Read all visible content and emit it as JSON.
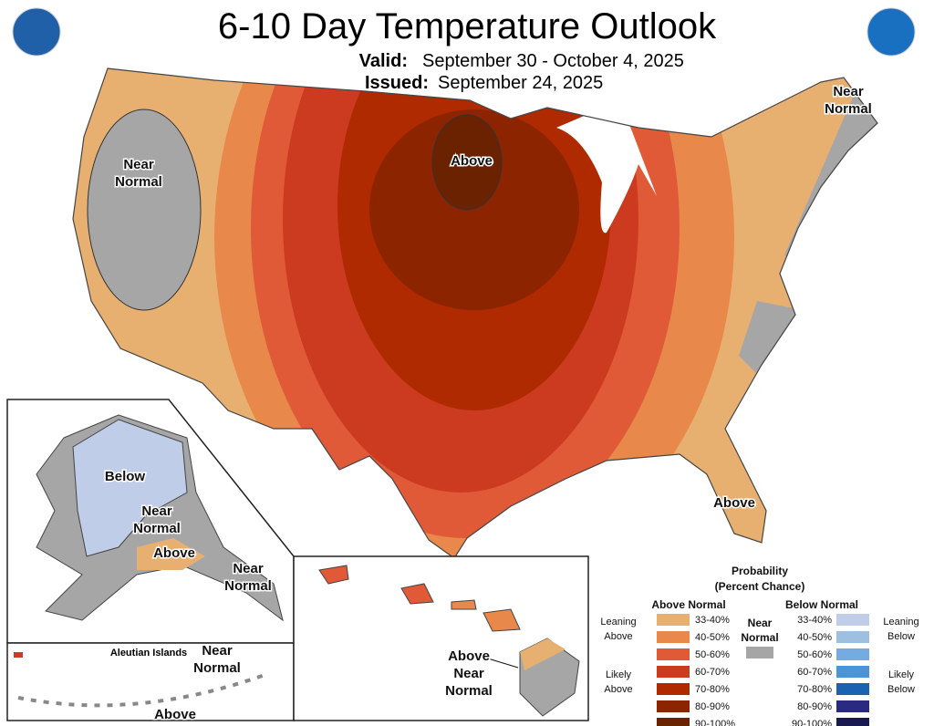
{
  "header": {
    "title": "6-10 Day Temperature Outlook",
    "valid_label": "Valid:",
    "valid": "September 30 - October 4, 2025",
    "issued_label": "Issued:",
    "issued": "September 24, 2025"
  },
  "map_labels": [
    {
      "lines": [
        "Near",
        "Normal"
      ]
    },
    {
      "lines": [
        "Above"
      ]
    },
    {
      "lines": [
        "Near",
        "Normal"
      ]
    },
    {
      "lines": [
        "Above"
      ]
    },
    {
      "lines": [
        "Below"
      ]
    },
    {
      "lines": [
        "Near",
        "Normal"
      ]
    },
    {
      "lines": [
        "Above"
      ]
    },
    {
      "lines": [
        "Near",
        "Normal"
      ]
    },
    {
      "lines": [
        "Near",
        "Normal"
      ]
    },
    {
      "lines": [
        "Above"
      ]
    },
    {
      "lines": [
        "Above"
      ]
    },
    {
      "lines": [
        "Near",
        "Normal"
      ]
    }
  ],
  "inset_label": "Aleutian Islands",
  "legend": {
    "title": [
      "Probability",
      "(Percent Chance)"
    ],
    "above_heading": "Above Normal",
    "below_heading": "Below Normal",
    "near_heading": [
      "Near",
      "Normal"
    ],
    "near_color": "#a6a6a6",
    "leaning_above": [
      "Leaning",
      "Above"
    ],
    "likely_above": [
      "Likely",
      "Above"
    ],
    "leaning_below": [
      "Leaning",
      "Below"
    ],
    "likely_below": [
      "Likely",
      "Below"
    ],
    "above": [
      {
        "label": "33-40%",
        "color": "#e8b070"
      },
      {
        "label": "40-50%",
        "color": "#e8884a"
      },
      {
        "label": "50-60%",
        "color": "#e05a38"
      },
      {
        "label": "60-70%",
        "color": "#cc3b20"
      },
      {
        "label": "70-80%",
        "color": "#b02a00"
      },
      {
        "label": "80-90%",
        "color": "#8c2400"
      },
      {
        "label": "90-100%",
        "color": "#6b2200"
      }
    ],
    "below": [
      {
        "label": "33-40%",
        "color": "#c0cde8"
      },
      {
        "label": "40-50%",
        "color": "#9fbfe0"
      },
      {
        "label": "50-60%",
        "color": "#74abe0"
      },
      {
        "label": "60-70%",
        "color": "#4a94d8"
      },
      {
        "label": "70-80%",
        "color": "#1b62b0"
      },
      {
        "label": "80-90%",
        "color": "#2a2a80"
      },
      {
        "label": "90-100%",
        "color": "#1a1a50"
      }
    ]
  }
}
